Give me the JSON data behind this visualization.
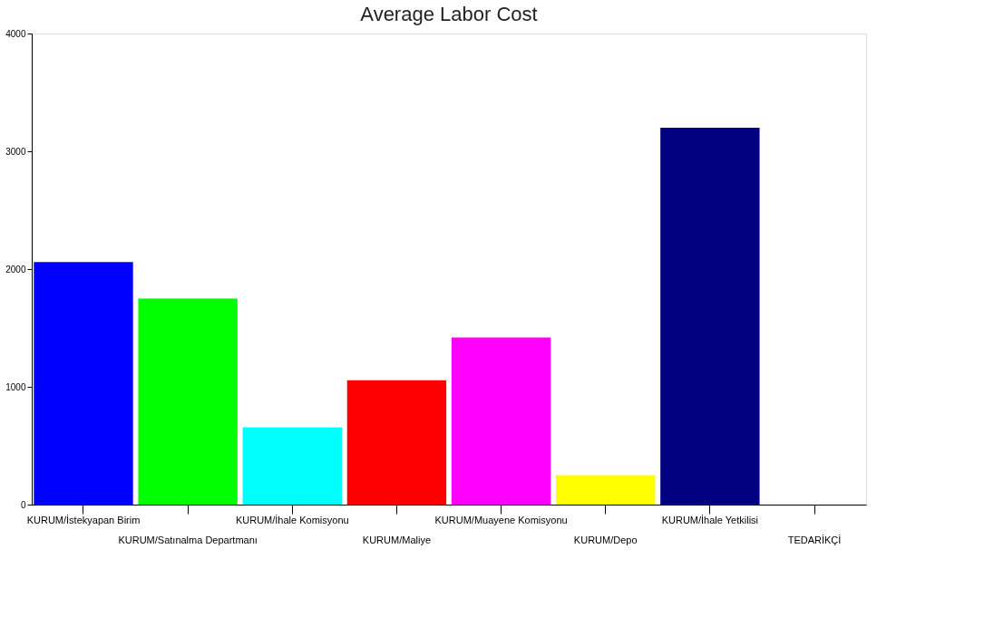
{
  "chart_data": {
    "type": "bar",
    "title": "Average Labor Cost",
    "categories": [
      "KURUM/İstekyapan Birim",
      "KURUM/Satınalma Departmanı",
      "KURUM/İhale Komisyonu",
      "KURUM/Maliye",
      "KURUM/Muayene Komisyonu",
      "KURUM/Depo",
      "KURUM/İhale Yetkilisi",
      "TEDARİKÇİ"
    ],
    "values": [
      2060,
      1750,
      655,
      1055,
      1420,
      250,
      3200,
      null
    ],
    "colors": [
      "#0000ff",
      "#00ff00",
      "#00ffff",
      "#ff0000",
      "#ff00ff",
      "#ffff00",
      "#000080",
      "#808080"
    ],
    "ylim": [
      0,
      4000
    ],
    "yticks": [
      0,
      1000,
      2000,
      3000,
      4000
    ],
    "grid": false
  }
}
